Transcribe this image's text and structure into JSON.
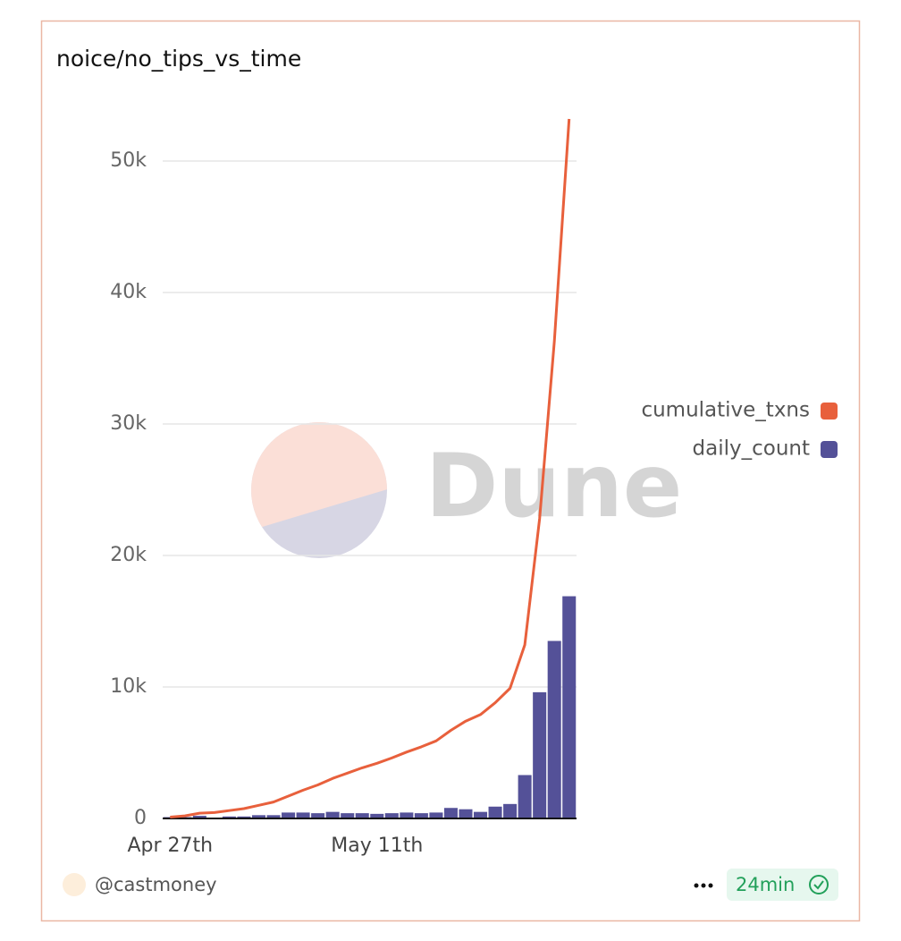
{
  "chart_data": {
    "type": "bar-line",
    "title": "noice/no_tips_vs_time",
    "categories": [
      "Apr 27th",
      null,
      null,
      null,
      null,
      null,
      null,
      null,
      null,
      null,
      null,
      null,
      null,
      null,
      "May 11th",
      null,
      null,
      null,
      null,
      null,
      null,
      null,
      null,
      null,
      null,
      null,
      null,
      null
    ],
    "series": [
      {
        "name": "cumulative_txns",
        "type": "line",
        "color": "#e8603c",
        "values": [
          100,
          200,
          400,
          450,
          600,
          750,
          1000,
          1250,
          1700,
          2150,
          2550,
          3050,
          3450,
          3850,
          4200,
          4600,
          5050,
          5450,
          5900,
          6700,
          7400,
          7900,
          8800,
          9900,
          13200,
          22800,
          36300,
          53200
        ]
      },
      {
        "name": "daily_count",
        "type": "bar",
        "color": "#545198",
        "values": [
          100,
          100,
          200,
          50,
          150,
          150,
          250,
          250,
          450,
          450,
          400,
          500,
          400,
          400,
          350,
          400,
          450,
          400,
          450,
          800,
          700,
          500,
          900,
          1100,
          3300,
          9600,
          13500,
          16900
        ]
      }
    ],
    "ylim": [
      0,
      55000
    ],
    "yticks": [
      0,
      {
        "value": 10000,
        "label": "10k"
      },
      {
        "value": 20000,
        "label": "20k"
      },
      {
        "value": 30000,
        "label": "30k"
      },
      {
        "value": 40000,
        "label": "40k"
      },
      {
        "value": 50000,
        "label": "50k"
      }
    ],
    "grid": true,
    "legend": "right",
    "watermark": "Dune"
  },
  "footer": {
    "author": "@castmoney",
    "refresh": "24min"
  }
}
